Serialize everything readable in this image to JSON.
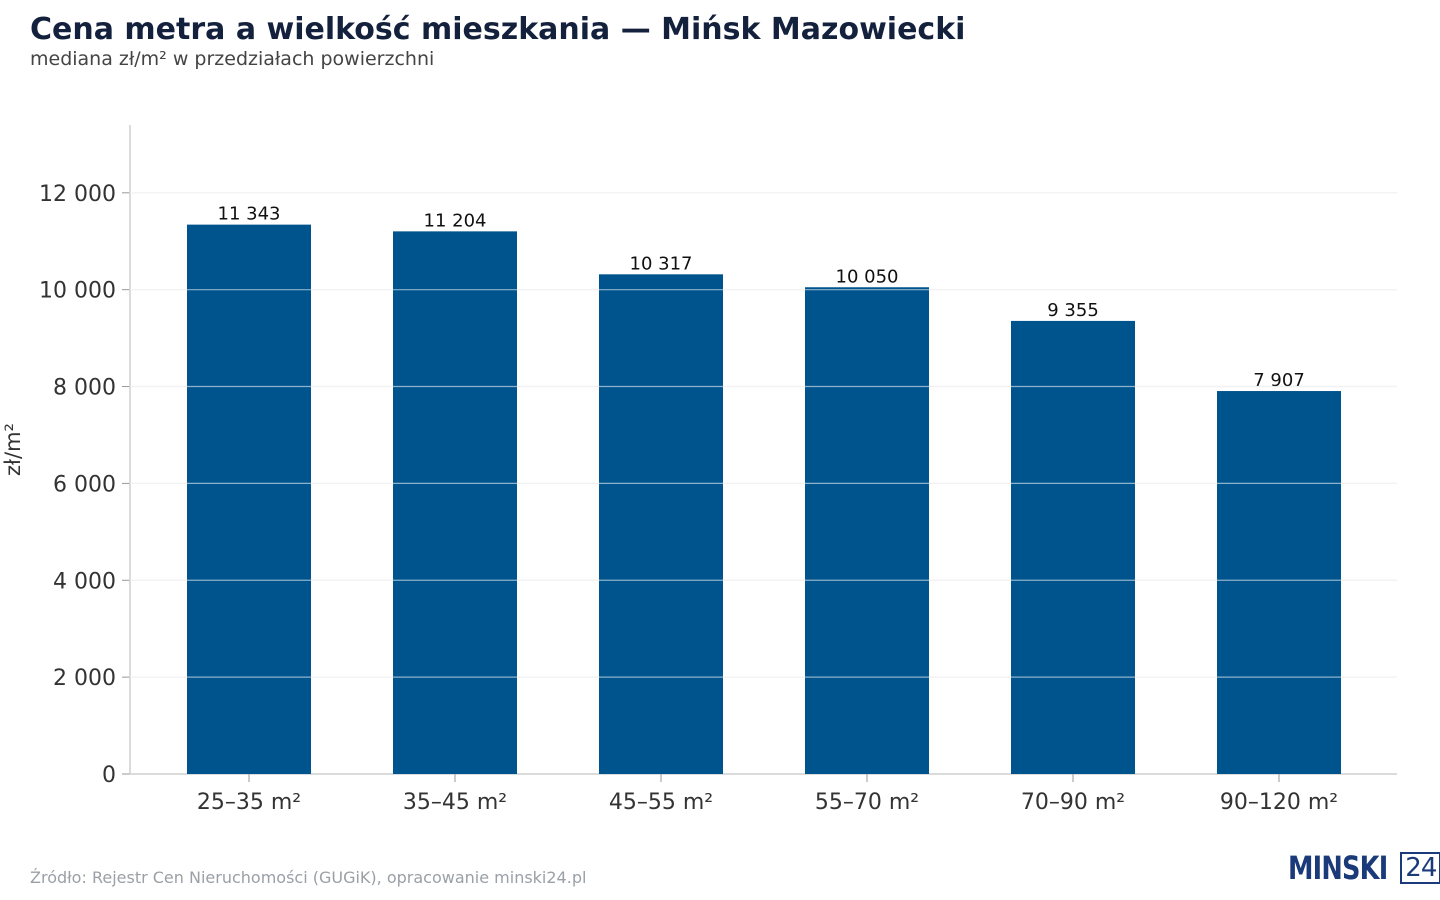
{
  "header": {
    "title": "Cena metra a wielkość mieszkania — Mińsk Mazowiecki",
    "subtitle": "mediana zł/m² w przedziałach powierzchni"
  },
  "footer": {
    "source": "Źródło: Rejestr Cen Nieruchomości (GUGiK), opracowanie minski24.pl"
  },
  "logo": {
    "text": "MINSKI",
    "number": "24"
  },
  "colors": {
    "bar": "#00548e",
    "grid": "#e3e3e3",
    "axis": "#cfcfcf",
    "logo": "#1a3a7a"
  },
  "chart_data": {
    "type": "bar",
    "title": "Cena metra a wielkość mieszkania — Mińsk Mazowiecki",
    "subtitle": "mediana zł/m² w przedziałach powierzchni",
    "xlabel": "",
    "ylabel": "zł/m²",
    "categories": [
      "25–35 m²",
      "35–45 m²",
      "45–55 m²",
      "55–70 m²",
      "70–90 m²",
      "90–120 m²"
    ],
    "values": [
      11343,
      11204,
      10317,
      10050,
      9355,
      7907
    ],
    "value_labels": [
      "11 343",
      "11 204",
      "10 317",
      "10 050",
      "9 355",
      "7 907"
    ],
    "yticks": [
      0,
      2000,
      4000,
      6000,
      8000,
      10000,
      12000
    ],
    "ytick_labels": [
      "0",
      "2 000",
      "4 000",
      "6 000",
      "8 000",
      "10 000",
      "12 000"
    ],
    "ylim": [
      0,
      13400
    ],
    "grid": true,
    "legend": "none"
  }
}
